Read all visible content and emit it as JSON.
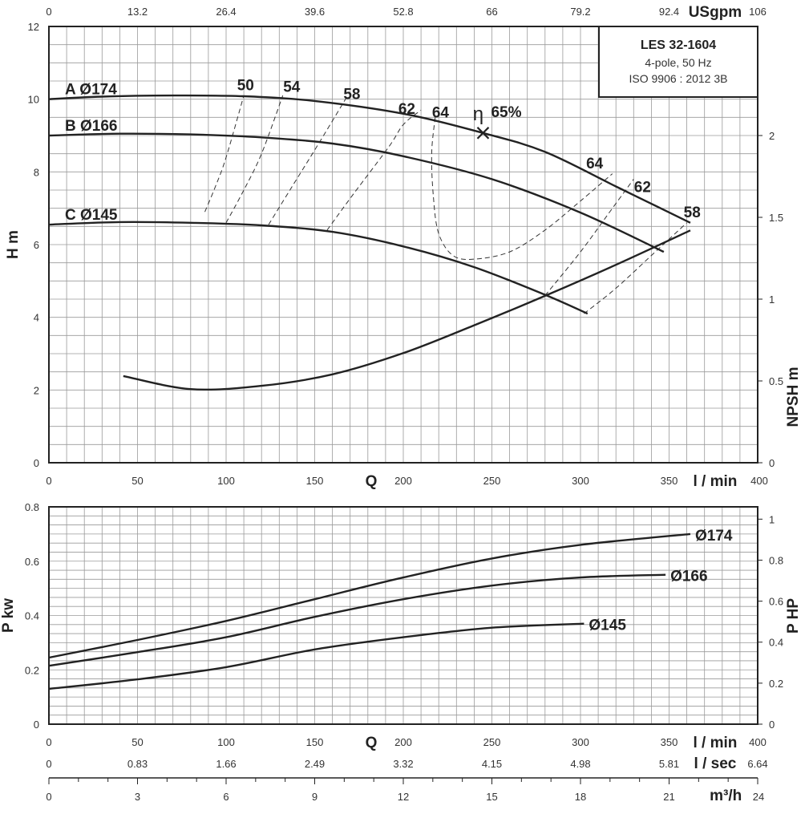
{
  "title_box": {
    "model": "LES 32-1604",
    "line2": "4-pole, 50 Hz",
    "line3": "ISO 9906 : 2012 3B"
  },
  "units": {
    "usgpm": "USgpm",
    "lmin": "l / min",
    "lsec": "l / sec",
    "m3h": "m³/h",
    "q": "Q",
    "h": "H m",
    "npsh": "NPSH m",
    "pkw": "P kw",
    "php": "P HP",
    "eta": "η",
    "bep_label": "65%"
  },
  "chart_data": [
    {
      "type": "line",
      "name": "head",
      "xlabel": "Q",
      "ylabel": "H m",
      "xlim": [
        0,
        400
      ],
      "ylim": [
        0,
        12
      ],
      "x_ticks": [
        "0",
        "50",
        "100",
        "150",
        "200",
        "250",
        "300",
        "350",
        "400"
      ],
      "y_ticks": [
        "0",
        "2",
        "4",
        "6",
        "8",
        "10",
        "12"
      ],
      "top_axis": {
        "unit": "USgpm",
        "ticks": [
          "0",
          "13.2",
          "26.4",
          "39.6",
          "52.8",
          "66",
          "79.2",
          "92.4",
          "106"
        ]
      },
      "right_axis": {
        "unit": "NPSH m",
        "ticks": [
          "0",
          "0.5",
          "1",
          "1.5",
          "2"
        ],
        "ylim": [
          0,
          2
        ]
      },
      "series": [
        {
          "name": "A Ø174",
          "x": [
            0,
            30,
            70,
            110,
            150,
            200,
            245,
            280,
            320,
            362
          ],
          "y": [
            10.0,
            10.07,
            10.1,
            10.08,
            9.95,
            9.6,
            9.07,
            8.55,
            7.6,
            6.6
          ]
        },
        {
          "name": "B Ø166",
          "x": [
            0,
            40,
            80,
            120,
            160,
            200,
            250,
            300,
            347
          ],
          "y": [
            9.0,
            9.05,
            9.03,
            8.95,
            8.78,
            8.43,
            7.8,
            6.88,
            5.8
          ]
        },
        {
          "name": "C Ø145",
          "x": [
            0,
            40,
            80,
            120,
            160,
            200,
            240,
            280,
            304
          ],
          "y": [
            6.55,
            6.62,
            6.6,
            6.53,
            6.35,
            5.95,
            5.38,
            4.62,
            4.1
          ]
        }
      ],
      "npsh": {
        "x": [
          42,
          80,
          120,
          160,
          200,
          240,
          280,
          320,
          362
        ],
        "y": [
          0.53,
          0.45,
          0.47,
          0.54,
          0.67,
          0.84,
          1.02,
          1.21,
          1.42
        ]
      },
      "efficiency": {
        "labels": [
          {
            "text": "50",
            "x": 111,
            "y": 10.25
          },
          {
            "text": "54",
            "x": 137,
            "y": 10.2
          },
          {
            "text": "58",
            "x": 171,
            "y": 10.0
          },
          {
            "text": "62",
            "x": 202,
            "y": 9.6
          },
          {
            "text": "64",
            "x": 221,
            "y": 9.5
          },
          {
            "text": "64",
            "x": 308,
            "y": 8.1
          },
          {
            "text": "62",
            "x": 335,
            "y": 7.45
          },
          {
            "text": "58",
            "x": 363,
            "y": 6.75
          }
        ],
        "contours": [
          {
            "x": [
              88,
              94,
              100,
              110
            ],
            "y": [
              6.9,
              7.6,
              8.4,
              10.1
            ]
          },
          {
            "x": [
              100,
              110,
              120,
              132
            ],
            "y": [
              6.6,
              7.5,
              8.5,
              10.1
            ]
          },
          {
            "x": [
              124,
              136,
              150,
              168
            ],
            "y": [
              6.55,
              7.5,
              8.6,
              10.05
            ]
          },
          {
            "x": [
              157,
              172,
              192,
              200,
              210
            ],
            "y": [
              6.4,
              7.4,
              8.7,
              9.3,
              9.7
            ]
          },
          {
            "x": [
              218,
              216,
              217,
              220,
              228,
              240,
              260,
              280,
              300,
              318
            ],
            "y": [
              9.5,
              8.5,
              7.3,
              6.3,
              5.7,
              5.6,
              5.8,
              6.4,
              7.2,
              7.95
            ]
          },
          {
            "x": [
              280,
              300,
              318,
              330
            ],
            "y": [
              4.6,
              5.8,
              7.0,
              7.8
            ]
          },
          {
            "x": [
              302,
              320,
              340,
              360
            ],
            "y": [
              4.1,
              4.8,
              5.7,
              6.6
            ]
          }
        ],
        "bep": {
          "x": 245,
          "y": 9.07
        }
      }
    },
    {
      "type": "line",
      "name": "power",
      "xlabel": "Q",
      "ylabel": "P kw",
      "xlim": [
        0,
        400
      ],
      "ylim": [
        0,
        0.8
      ],
      "x_ticks": [
        "0",
        "50",
        "100",
        "150",
        "200",
        "250",
        "300",
        "350",
        "400"
      ],
      "y_ticks": [
        "0",
        "0.2",
        "0.4",
        "0.6",
        "0.8"
      ],
      "right_axis": {
        "unit": "P HP",
        "ticks": [
          "0",
          "0.2",
          "0.4",
          "0.6",
          "0.8",
          "1"
        ],
        "ylim": [
          0,
          1.06
        ]
      },
      "extra_axes": [
        {
          "unit": "l / sec",
          "ticks": [
            "0",
            "0.83",
            "1.66",
            "2.49",
            "3.32",
            "4.15",
            "4.98",
            "5.81",
            "6.64"
          ]
        },
        {
          "unit": "m³/h",
          "ticks": [
            "0",
            "3",
            "6",
            "9",
            "12",
            "15",
            "18",
            "21",
            "24"
          ]
        }
      ],
      "series": [
        {
          "name": "Ø174",
          "x": [
            0,
            50,
            100,
            150,
            200,
            250,
            300,
            362
          ],
          "y": [
            0.245,
            0.31,
            0.38,
            0.46,
            0.54,
            0.61,
            0.66,
            0.7
          ]
        },
        {
          "name": "Ø166",
          "x": [
            0,
            50,
            100,
            150,
            200,
            250,
            300,
            348
          ],
          "y": [
            0.215,
            0.265,
            0.32,
            0.395,
            0.46,
            0.51,
            0.54,
            0.55
          ]
        },
        {
          "name": "Ø145",
          "x": [
            0,
            50,
            100,
            150,
            200,
            250,
            302
          ],
          "y": [
            0.13,
            0.165,
            0.21,
            0.275,
            0.32,
            0.355,
            0.37
          ]
        }
      ]
    }
  ],
  "colors": {
    "curve": "#222222",
    "grid": "#9a9a9a",
    "axis": "#222222"
  }
}
